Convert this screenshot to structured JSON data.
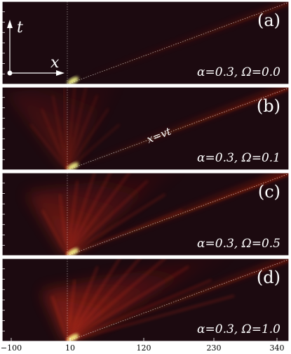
{
  "panels": [
    {
      "tag": "(a)",
      "alpha_label": "α=0.3, Ω=0.0",
      "main_slope": 0.4,
      "main_width": 0.045,
      "fan_spread": 0.02,
      "fan_intensity": 0.15
    },
    {
      "tag": "(b)",
      "alpha_label": "α=0.3, Ω=0.1",
      "main_slope": 0.1,
      "main_width": 0.1,
      "fan_spread": 0.85,
      "fan_intensity": 0.55
    },
    {
      "tag": "(c)",
      "alpha_label": "α=0.3, Ω=0.5",
      "main_slope": 0.35,
      "main_width": 0.12,
      "fan_spread": 0.45,
      "fan_intensity": 0.8
    },
    {
      "tag": "(d)",
      "alpha_label": "α=0.3, Ω=1.0",
      "main_slope": 0.55,
      "main_width": 0.08,
      "fan_spread": 0.12,
      "fan_intensity": 0.9
    }
  ],
  "line_label": "x=vt",
  "axes": {
    "t_label": "t",
    "x_label": "x"
  },
  "x_ticks": [
    "−100",
    "10",
    "120",
    "230",
    "340"
  ],
  "x_tick_values": [
    -100,
    10,
    120,
    230,
    340
  ],
  "colors": {
    "background": "#1c0a10",
    "divider": "#ffffff",
    "hot": "#ff2a10",
    "core": "#ffff90"
  }
}
